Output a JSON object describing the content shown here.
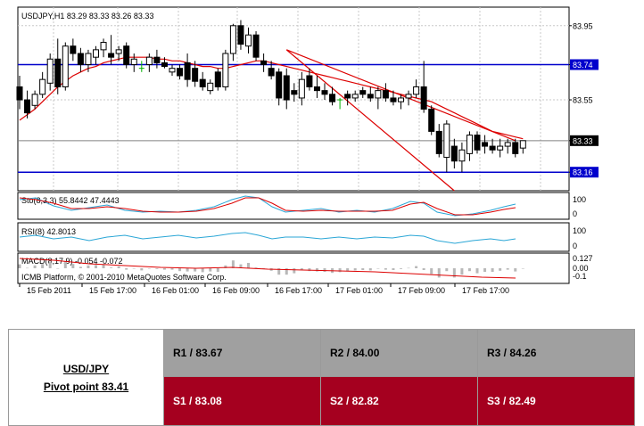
{
  "chart_data": {
    "type": "candlestick",
    "symbol_header": "USDJPY,H1  83.29 83.33 83.26 83.33",
    "price_axis_ticks": [
      "83.95",
      "83.74",
      "83.55",
      "83.33",
      "83.16"
    ],
    "ylim": [
      83.06,
      84.05
    ],
    "horizontal_lines": [
      {
        "value": 83.74,
        "label": "83.74",
        "color": "#0000cc"
      },
      {
        "value": 83.16,
        "label": "83.16",
        "color": "#0000cc"
      }
    ],
    "current_price": {
      "value": 83.33,
      "label": "83.33"
    },
    "x_tick_labels": [
      "15 Feb 2011",
      "15 Feb 17:00",
      "16 Feb 01:00",
      "16 Feb 09:00",
      "16 Feb 17:00",
      "17 Feb 01:00",
      "17 Feb 09:00",
      "17 Feb 17:00"
    ],
    "candles": [
      [
        83.62,
        83.68,
        83.5,
        83.55
      ],
      [
        83.55,
        83.6,
        83.45,
        83.48
      ],
      [
        83.52,
        83.6,
        83.5,
        83.58
      ],
      [
        83.58,
        83.7,
        83.56,
        83.66
      ],
      [
        83.64,
        83.8,
        83.6,
        83.77
      ],
      [
        83.77,
        83.88,
        83.58,
        83.62
      ],
      [
        83.62,
        83.86,
        83.6,
        83.84
      ],
      [
        83.84,
        83.88,
        83.76,
        83.8
      ],
      [
        83.8,
        83.83,
        83.7,
        83.74
      ],
      [
        83.74,
        83.82,
        83.7,
        83.8
      ],
      [
        83.78,
        83.84,
        83.74,
        83.82
      ],
      [
        83.82,
        83.88,
        83.78,
        83.86
      ],
      [
        83.8,
        83.9,
        83.74,
        83.78
      ],
      [
        83.8,
        83.84,
        83.76,
        83.82
      ],
      [
        83.84,
        83.86,
        83.72,
        83.74
      ],
      [
        83.74,
        83.8,
        83.7,
        83.77
      ],
      [
        83.73,
        83.76,
        83.7,
        83.72
      ],
      [
        83.74,
        83.8,
        83.7,
        83.78
      ],
      [
        83.78,
        83.82,
        83.72,
        83.75
      ],
      [
        83.75,
        83.78,
        83.72,
        83.73
      ],
      [
        83.7,
        83.74,
        83.68,
        83.72
      ],
      [
        83.72,
        83.74,
        83.66,
        83.68
      ],
      [
        83.75,
        83.8,
        83.62,
        83.66
      ],
      [
        83.72,
        83.76,
        83.62,
        83.65
      ],
      [
        83.66,
        83.7,
        83.6,
        83.62
      ],
      [
        83.6,
        83.66,
        83.58,
        83.64
      ],
      [
        83.7,
        83.72,
        83.6,
        83.62
      ],
      [
        83.62,
        83.82,
        83.6,
        83.8
      ],
      [
        83.8,
        83.96,
        83.76,
        83.95
      ],
      [
        83.95,
        83.98,
        83.82,
        83.85
      ],
      [
        83.84,
        83.94,
        83.8,
        83.9
      ],
      [
        83.9,
        83.92,
        83.76,
        83.78
      ],
      [
        83.76,
        83.8,
        83.7,
        83.74
      ],
      [
        83.72,
        83.76,
        83.66,
        83.68
      ],
      [
        83.7,
        83.72,
        83.52,
        83.56
      ],
      [
        83.68,
        83.72,
        83.5,
        83.55
      ],
      [
        83.6,
        83.64,
        83.54,
        83.58
      ],
      [
        83.56,
        83.7,
        83.52,
        83.66
      ],
      [
        83.68,
        83.72,
        83.6,
        83.62
      ],
      [
        83.62,
        83.68,
        83.56,
        83.6
      ],
      [
        83.6,
        83.64,
        83.55,
        83.58
      ],
      [
        83.58,
        83.62,
        83.52,
        83.54
      ],
      [
        83.54,
        83.56,
        83.5,
        83.55
      ],
      [
        83.58,
        83.6,
        83.52,
        83.56
      ],
      [
        83.56,
        83.6,
        83.54,
        83.58
      ],
      [
        83.6,
        83.62,
        83.56,
        83.58
      ],
      [
        83.58,
        83.62,
        83.54,
        83.56
      ],
      [
        83.56,
        83.62,
        83.5,
        83.6
      ],
      [
        83.6,
        83.64,
        83.54,
        83.56
      ],
      [
        83.56,
        83.6,
        83.52,
        83.54
      ],
      [
        83.54,
        83.58,
        83.5,
        83.56
      ],
      [
        83.56,
        83.6,
        83.52,
        83.58
      ],
      [
        83.58,
        83.66,
        83.56,
        83.62
      ],
      [
        83.62,
        83.76,
        83.48,
        83.5
      ],
      [
        83.5,
        83.52,
        83.36,
        83.38
      ],
      [
        83.38,
        83.42,
        83.24,
        83.26
      ],
      [
        83.24,
        83.44,
        83.16,
        83.42
      ],
      [
        83.3,
        83.34,
        83.18,
        83.22
      ],
      [
        83.22,
        83.32,
        83.16,
        83.28
      ],
      [
        83.26,
        83.38,
        83.22,
        83.36
      ],
      [
        83.36,
        83.38,
        83.26,
        83.28
      ],
      [
        83.32,
        83.36,
        83.26,
        83.3
      ],
      [
        83.3,
        83.34,
        83.26,
        83.28
      ],
      [
        83.28,
        83.34,
        83.24,
        83.3
      ],
      [
        83.3,
        83.34,
        83.26,
        83.32
      ],
      [
        83.32,
        83.34,
        83.24,
        83.26
      ],
      [
        83.29,
        83.33,
        83.26,
        83.33
      ]
    ],
    "moving_average": [
      83.44,
      83.47,
      83.5,
      83.54,
      83.58,
      83.62,
      83.65,
      83.68,
      83.7,
      83.72,
      83.73,
      83.75,
      83.76,
      83.77,
      83.78,
      83.78,
      83.78,
      83.78,
      83.77,
      83.77,
      83.76,
      83.76,
      83.75,
      83.74,
      83.73,
      83.73,
      83.72,
      83.72,
      83.73,
      83.74,
      83.75,
      83.76,
      83.76,
      83.75,
      83.74,
      83.73,
      83.72,
      83.71,
      83.7,
      83.69,
      83.68,
      83.67,
      83.66,
      83.65,
      83.64,
      83.63,
      83.62,
      83.61,
      83.6,
      83.59,
      83.58,
      83.57,
      83.56,
      83.55,
      83.54,
      83.52,
      83.5,
      83.48,
      83.46,
      83.44,
      83.42,
      83.4,
      83.38,
      83.37,
      83.36,
      83.35,
      83.34
    ],
    "trendline": {
      "color": "#dd0000"
    },
    "stochastic": {
      "label": "Sto(8,3,3) 55.8442 47.4443",
      "ticks": [
        "100",
        "0"
      ]
    },
    "rsi": {
      "label": "RSI(8) 42.8013",
      "ticks": [
        "100",
        "0"
      ]
    },
    "macd": {
      "label": "MACD(8,17,9) -0.054 -0.072",
      "ticks": [
        "0.127",
        "0.00",
        "-0.1"
      ]
    },
    "copyright": "ICMB Platform, © 2001-2010 MetaQuotes Software Corp."
  },
  "pivot": {
    "title": "USD/JPY",
    "subtitle": "Pivot point 83.41",
    "resistances": [
      "R1 / 83.67",
      "R2 / 84.00",
      "R3 / 84.26"
    ],
    "supports": [
      "S1 / 83.08",
      "S2 / 82.82",
      "S3 / 82.49"
    ],
    "resistance_color": "#a0a0a0",
    "support_color": "#a5001f"
  }
}
